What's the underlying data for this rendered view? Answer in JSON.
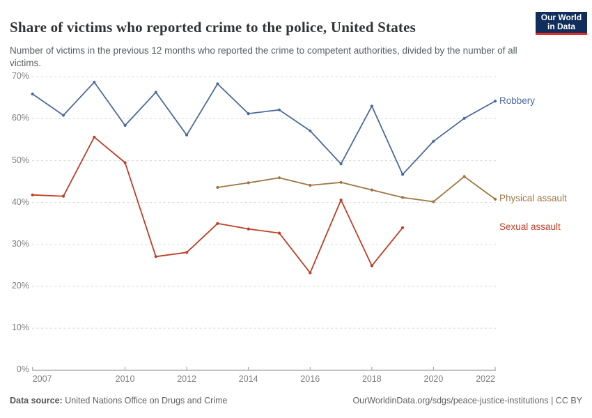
{
  "header": {
    "title": "Share of victims who reported crime to the police, United States",
    "subtitle": "Number of victims in the previous 12 months who reported the crime to competent authorities, divided by the number of all victims.",
    "logo": {
      "line1": "Our World",
      "line2": "in Data"
    }
  },
  "footer": {
    "source_label": "Data source:",
    "source_text": "United Nations Office on Drugs and Crime",
    "attribution": "OurWorldinData.org/sdgs/peace-justice-institutions | CC BY"
  },
  "colors": {
    "logo_bg": "#102D5C",
    "logo_bar": "#DC2E27",
    "gridline": "#D8D8D8",
    "axis": "#9A9A9A",
    "tick_label": "#7D7D7D"
  },
  "chart_data": {
    "type": "line",
    "title": "Share of victims who reported crime to the police, United States",
    "xlabel": "",
    "ylabel": "",
    "xlim": [
      2007,
      2022
    ],
    "ylim": [
      0,
      70
    ],
    "grid": true,
    "legend_position": "labels at right end of each line",
    "x_ticks": [
      2007,
      2010,
      2012,
      2014,
      2016,
      2018,
      2020,
      2022
    ],
    "y_ticks": [
      0,
      10,
      20,
      30,
      40,
      50,
      60,
      70
    ],
    "y_tick_suffix": "%",
    "series": [
      {
        "name": "Robbery",
        "color": "#4C6A9C",
        "x": [
          2007,
          2008,
          2009,
          2010,
          2011,
          2012,
          2013,
          2014,
          2015,
          2016,
          2017,
          2018,
          2019,
          2020,
          2021,
          2022
        ],
        "values": [
          65.9,
          60.8,
          68.7,
          58.4,
          66.3,
          56.1,
          68.3,
          61.2,
          62.1,
          57.1,
          49.2,
          63.0,
          46.7,
          54.6,
          60.1,
          64.2
        ]
      },
      {
        "name": "Physical assault",
        "color": "#9E7642",
        "x": [
          2013,
          2014,
          2015,
          2016,
          2017,
          2018,
          2019,
          2020,
          2021,
          2022
        ],
        "values": [
          43.6,
          44.7,
          45.9,
          44.1,
          44.8,
          43.0,
          41.2,
          40.2,
          46.2,
          40.8
        ]
      },
      {
        "name": "Sexual assault",
        "color": "#BE3E24",
        "x": [
          2007,
          2008,
          2009,
          2010,
          2011,
          2012,
          2013,
          2014,
          2015,
          2016,
          2017,
          2018,
          2019
        ],
        "values": [
          41.8,
          41.5,
          55.6,
          49.5,
          27.1,
          28.1,
          35.0,
          33.7,
          32.7,
          23.2,
          40.6,
          24.9,
          34.0
        ]
      }
    ]
  }
}
